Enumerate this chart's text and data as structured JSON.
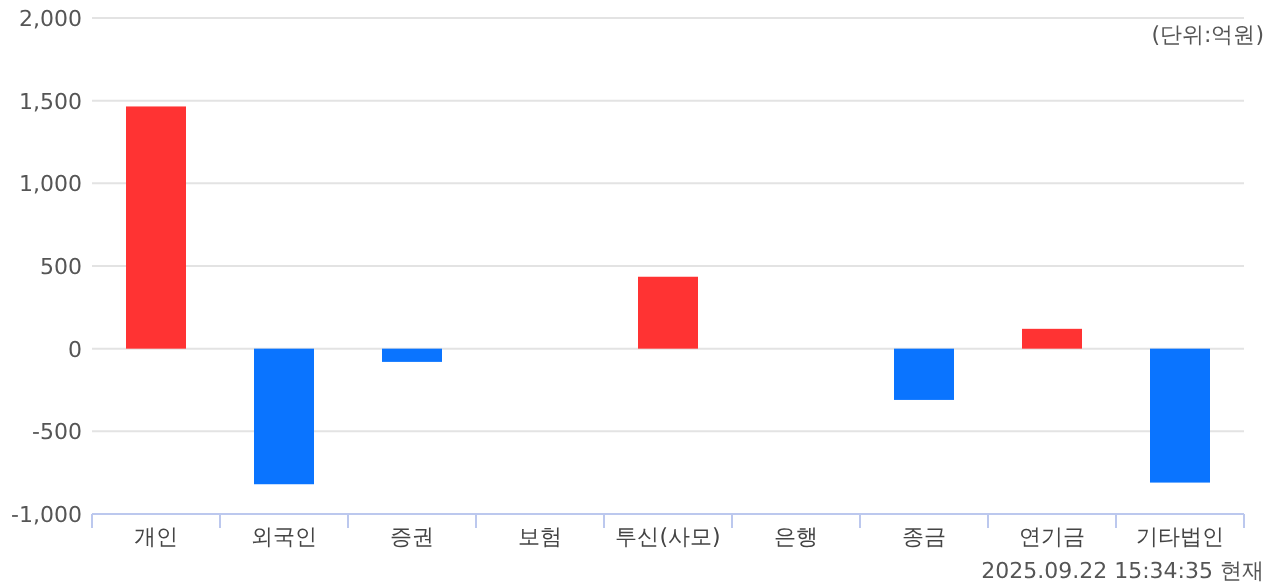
{
  "chart_data": {
    "type": "bar",
    "categories": [
      "개인",
      "외국인",
      "증권",
      "보험",
      "투신(사모)",
      "은행",
      "종금",
      "연기금",
      "기타법인"
    ],
    "values": [
      1465,
      -820,
      -80,
      0,
      435,
      0,
      -310,
      120,
      -810
    ],
    "colors": [
      "#ff3333",
      "#0a74ff",
      "#0a74ff",
      "#ff3333",
      "#ff3333",
      "#ff3333",
      "#0a74ff",
      "#ff3333",
      "#0a74ff"
    ],
    "ylim": [
      -1000,
      2000
    ],
    "yticks": [
      {
        "value": -1000,
        "label": "-1,000"
      },
      {
        "value": -500,
        "label": "-500"
      },
      0,
      {
        "value": 500,
        "label": "500"
      },
      {
        "value": 1000,
        "label": "1,000"
      },
      {
        "value": 1500,
        "label": "1,500"
      },
      {
        "value": 2000,
        "label": "2,000"
      }
    ],
    "grid": "y",
    "annotations": [
      "(단위:억원)",
      "2025.09.22 15:34:35 현재"
    ]
  }
}
